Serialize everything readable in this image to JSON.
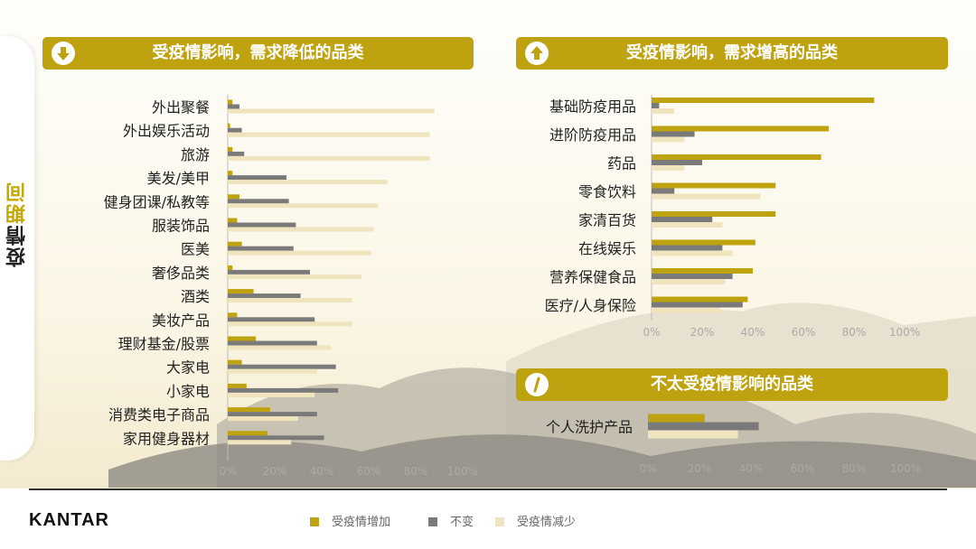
{
  "side_title": {
    "part1": "疫情",
    "part2": "期间"
  },
  "colors": {
    "increase": "#bfa20f",
    "same": "#7a7a7a",
    "decrease": "#efe4bd",
    "header": "#bfa20f"
  },
  "legend": [
    {
      "label": "受疫情增加",
      "color": "#bfa20f"
    },
    {
      "label": "不变",
      "color": "#7a7a7a"
    },
    {
      "label": "受疫情减少",
      "color": "#efe4bd"
    }
  ],
  "logo": "KANTAR",
  "headers": {
    "decrease": {
      "title": "受疫情影响，需求降低的品类",
      "icon": "arrow-down-icon"
    },
    "increase": {
      "title": "受疫情影响，需求增高的品类",
      "icon": "arrow-up-icon"
    },
    "neutral": {
      "title": "不太受疫情影响的品类",
      "icon": "slash-icon"
    }
  },
  "chart_data": [
    {
      "type": "bar",
      "orientation": "horizontal",
      "title": "受疫情影响，需求降低的品类",
      "ticks": [
        "0%",
        "20%",
        "40%",
        "60%",
        "80%",
        "100%"
      ],
      "xlim": [
        0,
        100
      ],
      "categories": [
        "外出聚餐",
        "外出娱乐活动",
        "旅游",
        "美发/美甲",
        "健身团课/私教等",
        "服装饰品",
        "医美",
        "奢侈品类",
        "酒类",
        "美妆产品",
        "理财基金/股票",
        "大家电",
        "小家电",
        "消费类电子商品",
        "家用健身器材"
      ],
      "series": [
        {
          "name": "受疫情增加",
          "values": [
            2,
            1,
            2,
            2,
            5,
            4,
            6,
            2,
            11,
            4,
            12,
            6,
            8,
            18,
            17
          ]
        },
        {
          "name": "不变",
          "values": [
            5,
            6,
            7,
            25,
            26,
            29,
            28,
            35,
            31,
            37,
            38,
            46,
            47,
            38,
            41
          ]
        },
        {
          "name": "受疫情减少",
          "values": [
            88,
            86,
            86,
            68,
            64,
            62,
            61,
            57,
            53,
            53,
            44,
            38,
            37,
            30,
            27
          ]
        }
      ]
    },
    {
      "type": "bar",
      "orientation": "horizontal",
      "title": "受疫情影响，需求增高的品类",
      "ticks": [
        "0%",
        "20%",
        "40%",
        "60%",
        "80%",
        "100%"
      ],
      "xlim": [
        0,
        100
      ],
      "categories": [
        "基础防疫用品",
        "进阶防疫用品",
        "药品",
        "零食饮料",
        "家清百货",
        "在线娱乐",
        "营养保健食品",
        "医疗/人身保险"
      ],
      "series": [
        {
          "name": "受疫情增加",
          "values": [
            88,
            70,
            67,
            49,
            49,
            41,
            40,
            38
          ]
        },
        {
          "name": "不变",
          "values": [
            3,
            17,
            20,
            9,
            24,
            28,
            32,
            36
          ]
        },
        {
          "name": "受疫情减少",
          "values": [
            9,
            13,
            13,
            43,
            28,
            32,
            29,
            27
          ]
        }
      ]
    },
    {
      "type": "bar",
      "orientation": "horizontal",
      "title": "不太受疫情影响的品类",
      "ticks": [
        "0%",
        "20%",
        "40%",
        "60%",
        "80%",
        "100%"
      ],
      "xlim": [
        0,
        100
      ],
      "categories": [
        "个人洗护产品"
      ],
      "series": [
        {
          "name": "受疫情增加",
          "values": [
            22
          ]
        },
        {
          "name": "不变",
          "values": [
            43
          ]
        },
        {
          "name": "受疫情减少",
          "values": [
            35
          ]
        }
      ]
    }
  ]
}
